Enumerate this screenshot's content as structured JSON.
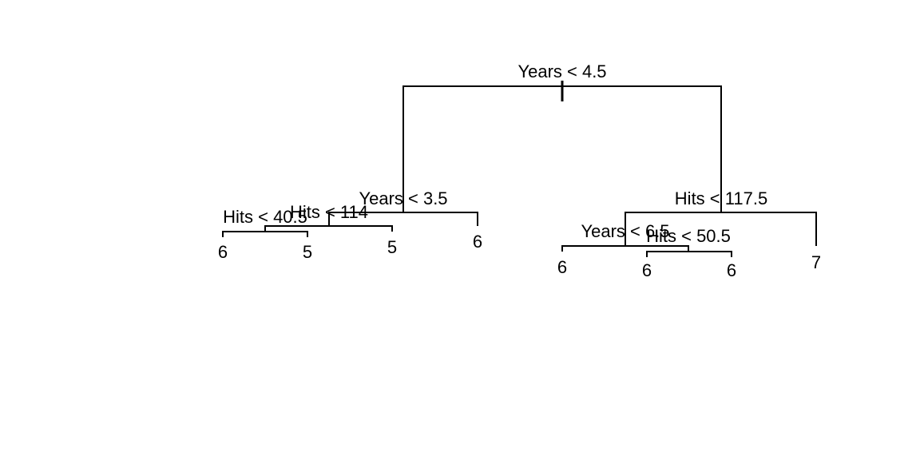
{
  "tree": {
    "splits": {
      "root": "Years < 4.5",
      "left": "Years < 3.5",
      "left_left": "Hits < 114",
      "left_left_left": "Hits < 40.5",
      "right": "Hits < 117.5",
      "right_left": "Years < 6.5",
      "right_left_right": "Hits < 50.5"
    },
    "leaves": {
      "leaf_1": "6",
      "leaf_2": "5",
      "leaf_3": "5",
      "leaf_4": "6",
      "leaf_5": "6",
      "leaf_6": "6",
      "leaf_7": "6",
      "leaf_8": "7"
    }
  }
}
